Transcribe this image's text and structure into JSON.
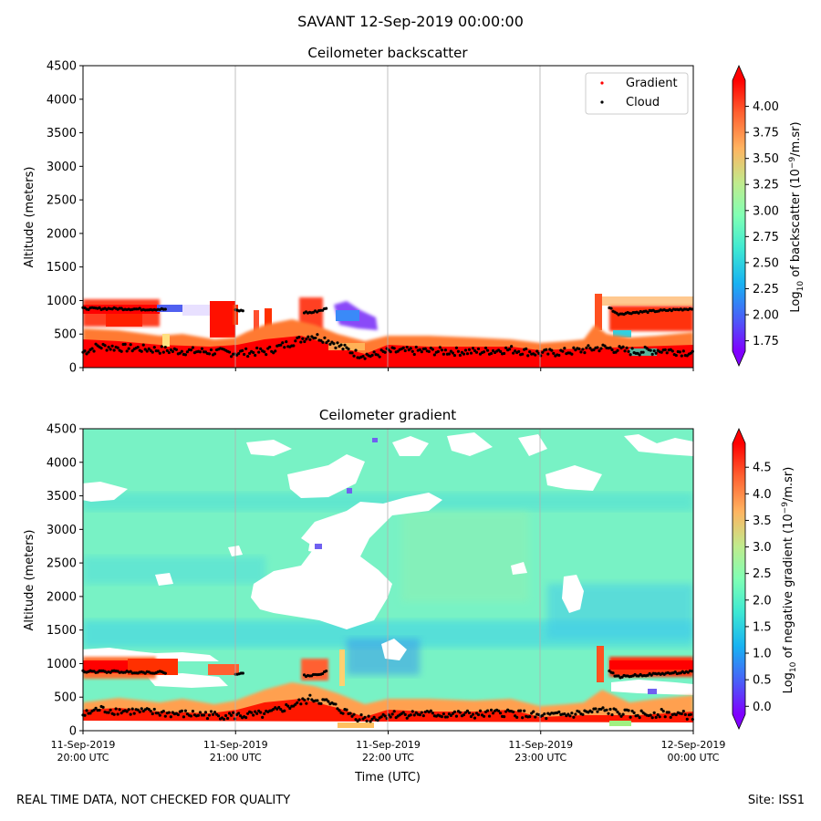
{
  "suptitle": "SAVANT 12-Sep-2019 00:00:00",
  "footer": {
    "left": "REAL TIME DATA, NOT CHECKED FOR QUALITY",
    "right": "Site: ISS1"
  },
  "chart_data": [
    {
      "type": "heatmap",
      "title": "Ceilometer backscatter",
      "xlabel": "",
      "ylabel": "Altitude (meters)",
      "ylim": [
        0,
        4500
      ],
      "yticks": [
        0,
        500,
        1000,
        1500,
        2000,
        2500,
        3000,
        3500,
        4000,
        4500
      ],
      "x_ticks": [
        "11-Sep-2019 20:00 UTC",
        "11-Sep-2019 21:00 UTC",
        "11-Sep-2019 22:00 UTC",
        "11-Sep-2019 23:00 UTC",
        "12-Sep-2019 00:00 UTC"
      ],
      "xlim_hours": [
        20,
        24
      ],
      "grid": "vertical",
      "legend": {
        "placement": "top-right",
        "entries": [
          {
            "name": "Gradient",
            "color": "#ff0000"
          },
          {
            "name": "Cloud",
            "color": "#000000"
          }
        ]
      },
      "colorbar": {
        "label_prefix": "Log",
        "label_sub": "10",
        "label_mid": " of backscatter (10",
        "label_sup": "−9",
        "label_suffix": "/m.sr)",
        "ticks": [
          "1.75",
          "2.00",
          "2.25",
          "2.50",
          "2.75",
          "3.00",
          "3.25",
          "3.50",
          "3.75",
          "4.00"
        ],
        "range": [
          1.65,
          4.25
        ]
      },
      "cloud_points_upper": [
        [
          20.0,
          880
        ],
        [
          20.2,
          880
        ],
        [
          20.4,
          870
        ],
        [
          20.6,
          870
        ],
        [
          20.8,
          870
        ],
        [
          21.0,
          850
        ],
        [
          21.5,
          820
        ],
        [
          21.6,
          880
        ],
        [
          21.7,
          820
        ],
        [
          21.8,
          950
        ],
        [
          23.4,
          1000
        ],
        [
          23.5,
          800
        ],
        [
          23.6,
          820
        ],
        [
          23.8,
          850
        ],
        [
          24.0,
          880
        ]
      ],
      "cloud_points_lower": [
        [
          20.0,
          230
        ],
        [
          20.1,
          320
        ],
        [
          20.2,
          300
        ],
        [
          20.4,
          280
        ],
        [
          20.6,
          250
        ],
        [
          20.8,
          240
        ],
        [
          21.0,
          220
        ],
        [
          21.2,
          240
        ],
        [
          21.3,
          320
        ],
        [
          21.4,
          400
        ],
        [
          21.5,
          480
        ],
        [
          21.6,
          420
        ],
        [
          21.7,
          300
        ],
        [
          21.8,
          200
        ],
        [
          21.9,
          180
        ],
        [
          22.0,
          240
        ],
        [
          22.2,
          250
        ],
        [
          22.4,
          240
        ],
        [
          22.6,
          240
        ],
        [
          22.8,
          270
        ],
        [
          23.0,
          210
        ],
        [
          23.2,
          240
        ],
        [
          23.4,
          300
        ],
        [
          23.6,
          240
        ],
        [
          23.8,
          260
        ],
        [
          24.0,
          220
        ]
      ]
    },
    {
      "type": "heatmap",
      "title": "Ceilometer gradient",
      "xlabel": "Time (UTC)",
      "ylabel": "Altitude (meters)",
      "ylim": [
        0,
        4500
      ],
      "yticks": [
        0,
        500,
        1000,
        1500,
        2000,
        2500,
        3000,
        3500,
        4000,
        4500
      ],
      "x_ticks": [
        "11-Sep-2019 20:00 UTC",
        "11-Sep-2019 21:00 UTC",
        "11-Sep-2019 22:00 UTC",
        "11-Sep-2019 23:00 UTC",
        "12-Sep-2019 00:00 UTC"
      ],
      "xlim_hours": [
        20,
        24
      ],
      "grid": "vertical",
      "colorbar": {
        "label_prefix": "Log",
        "label_sub": "10",
        "label_mid": " of negative gradient (10",
        "label_sup": "−9",
        "label_suffix": "/m.sr)",
        "ticks": [
          "0.0",
          "0.5",
          "1.0",
          "1.5",
          "2.0",
          "2.5",
          "3.0",
          "3.5",
          "4.0",
          "4.5"
        ],
        "range": [
          -0.15,
          4.95
        ]
      }
    }
  ]
}
